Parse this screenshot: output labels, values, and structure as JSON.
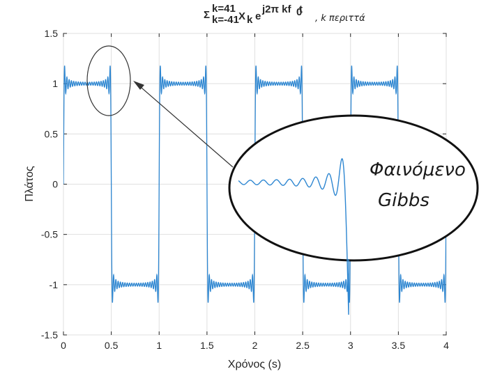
{
  "chart_data": {
    "type": "line",
    "title_formula": {
      "sigma": "Σ",
      "upper": "k=41",
      "lower": "k=-41",
      "term": "X",
      "term_sub": "k",
      "exp_base": "e",
      "exp_power": "j2π kf",
      "exp_power_sub": "0",
      "exp_power_tail": " t"
    },
    "title_annotation": ", k περιττά",
    "xlabel": "Χρόνος (s)",
    "ylabel": "Πλάτος",
    "xlim": [
      0,
      4
    ],
    "ylim": [
      -1.5,
      1.5
    ],
    "x_ticks": [
      "0",
      "0.5",
      "1",
      "1.5",
      "2",
      "2.5",
      "3",
      "3.5",
      "4"
    ],
    "y_ticks": [
      "1.5",
      "1",
      "0.5",
      "0",
      "-0.5",
      "-1",
      "-1.5"
    ],
    "grid": true,
    "series": [
      {
        "signal": "square-wave Fourier partial sum",
        "period": 1,
        "harmonics_max": 41,
        "harmonics": "odd",
        "amplitude": 1,
        "color": "#2d86d1"
      }
    ],
    "annotations": {
      "callout_text_line1": "Φαινόμενο",
      "callout_text_line2": "Gibbs"
    }
  }
}
